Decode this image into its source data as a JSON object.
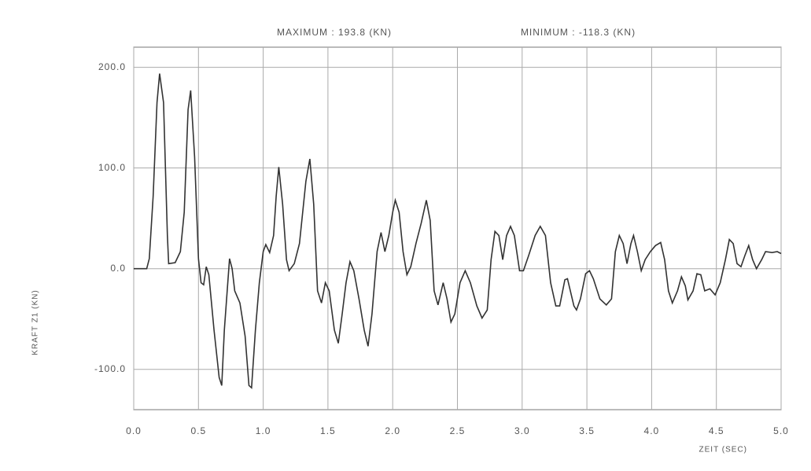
{
  "chart_data": {
    "type": "line",
    "annotations": [
      "MAXIMUM : 193.8 (KN)",
      "MINIMUM : -118.3 (KN)"
    ],
    "xlabel": "ZEIT (SEC)",
    "ylabel": "KRAFT Z1 (KN)",
    "xlim": [
      0,
      5
    ],
    "ylim": [
      -140,
      220
    ],
    "xticks": [
      {
        "value": 0,
        "label": "0.0"
      },
      {
        "value": 0.5,
        "label": "0.5"
      },
      {
        "value": 1,
        "label": "1.0"
      },
      {
        "value": 1.5,
        "label": "1.5"
      },
      {
        "value": 2,
        "label": "2.0"
      },
      {
        "value": 2.5,
        "label": "2.5"
      },
      {
        "value": 3,
        "label": "3.0"
      },
      {
        "value": 3.5,
        "label": "3.5"
      },
      {
        "value": 4,
        "label": "4.0"
      },
      {
        "value": 4.5,
        "label": "4.5"
      },
      {
        "value": 5,
        "label": "5.0"
      }
    ],
    "yticks": [
      {
        "value": -100,
        "label": "-100.0"
      },
      {
        "value": 0,
        "label": "0.0"
      },
      {
        "value": 100,
        "label": "100.0"
      },
      {
        "value": 200,
        "label": "200.0"
      }
    ],
    "grid": true,
    "series": [
      {
        "name": "KRAFT Z1",
        "color": "#333333",
        "x": [
          0,
          0.1,
          0.12,
          0.15,
          0.18,
          0.2,
          0.23,
          0.26,
          0.27,
          0.32,
          0.36,
          0.39,
          0.42,
          0.44,
          0.47,
          0.5,
          0.52,
          0.54,
          0.56,
          0.58,
          0.62,
          0.66,
          0.68,
          0.7,
          0.74,
          0.76,
          0.78,
          0.82,
          0.86,
          0.89,
          0.91,
          0.94,
          0.97,
          1.0,
          1.02,
          1.05,
          1.08,
          1.1,
          1.12,
          1.15,
          1.18,
          1.2,
          1.24,
          1.28,
          1.33,
          1.36,
          1.39,
          1.42,
          1.45,
          1.48,
          1.51,
          1.55,
          1.58,
          1.61,
          1.64,
          1.67,
          1.7,
          1.74,
          1.78,
          1.81,
          1.84,
          1.88,
          1.91,
          1.94,
          1.97,
          2.0,
          2.02,
          2.05,
          2.08,
          2.11,
          2.14,
          2.18,
          2.22,
          2.26,
          2.29,
          2.32,
          2.35,
          2.39,
          2.42,
          2.45,
          2.48,
          2.52,
          2.56,
          2.6,
          2.65,
          2.69,
          2.73,
          2.76,
          2.79,
          2.82,
          2.85,
          2.88,
          2.91,
          2.94,
          2.98,
          3.01,
          3.05,
          3.1,
          3.14,
          3.18,
          3.22,
          3.26,
          3.29,
          3.33,
          3.35,
          3.4,
          3.42,
          3.45,
          3.49,
          3.52,
          3.55,
          3.6,
          3.65,
          3.69,
          3.72,
          3.75,
          3.78,
          3.81,
          3.84,
          3.86,
          3.89,
          3.92,
          3.95,
          3.99,
          4.03,
          4.07,
          4.1,
          4.13,
          4.16,
          4.2,
          4.23,
          4.26,
          4.28,
          4.32,
          4.35,
          4.38,
          4.41,
          4.45,
          4.49,
          4.53,
          4.57,
          4.6,
          4.63,
          4.66,
          4.69,
          4.72,
          4.75,
          4.78,
          4.81,
          4.85,
          4.88,
          4.93,
          4.97,
          5.0
        ],
        "values": [
          0,
          0,
          10,
          72,
          165,
          193.8,
          165,
          33,
          5,
          6,
          17,
          56,
          158,
          177,
          111,
          10,
          -14,
          -16,
          2,
          -6,
          -61,
          -108,
          -116,
          -61,
          10,
          0,
          -22,
          -34,
          -67,
          -116,
          -118.3,
          -61,
          -14,
          17,
          24,
          16,
          33,
          72,
          101,
          64,
          9,
          -2,
          5,
          25,
          87,
          109,
          64,
          -22,
          -34,
          -14,
          -22,
          -61,
          -74,
          -45,
          -14,
          7,
          -2,
          -30,
          -61,
          -77,
          -45,
          17,
          36,
          17,
          33,
          56,
          68,
          56,
          17,
          -6,
          2,
          25,
          45,
          68,
          48,
          -22,
          -36,
          -14,
          -30,
          -53,
          -45,
          -14,
          -2,
          -14,
          -37,
          -49,
          -41,
          9,
          37,
          33,
          9,
          33,
          42,
          33,
          -2,
          -2,
          13,
          33,
          42,
          33,
          -14,
          -37,
          -37,
          -11,
          -10,
          -37,
          -41,
          -30,
          -5,
          -2,
          -10,
          -30,
          -36,
          -30,
          17,
          33,
          25,
          5,
          25,
          33,
          17,
          -2,
          9,
          17,
          23,
          26,
          9,
          -22,
          -34,
          -22,
          -8,
          -17,
          -31,
          -22,
          -5,
          -6,
          -22,
          -20,
          -26,
          -14,
          9,
          29,
          25,
          5,
          2,
          13,
          23,
          9,
          0,
          9,
          17,
          16,
          17,
          15
        ]
      }
    ]
  }
}
